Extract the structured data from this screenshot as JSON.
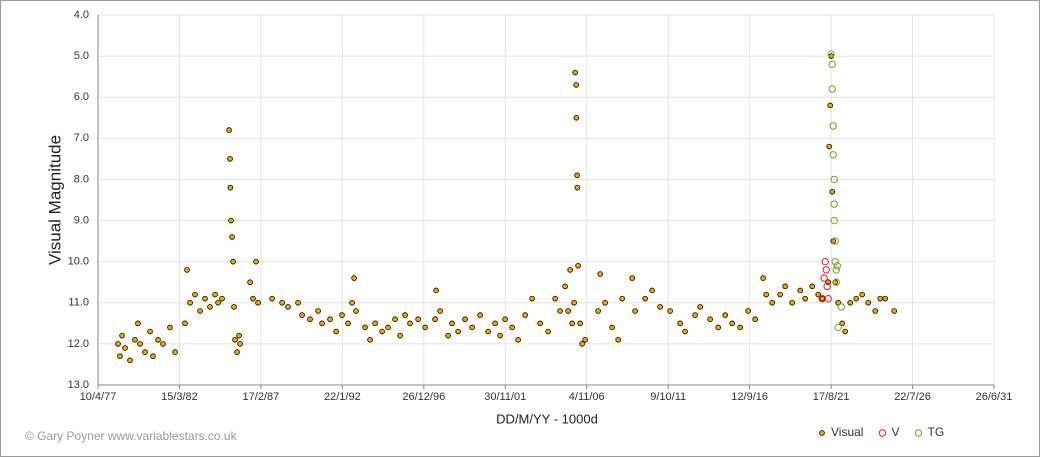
{
  "chart_data": {
    "type": "scatter",
    "x_label": "DD/M/YY - 1000d",
    "y_label": "Visual Magnitude",
    "credit": "© Gary Poyner www.variablestars.co.uk",
    "xlim": [
      28225,
      39225
    ],
    "xticks": [
      {
        "value": 28225,
        "label": "10/4/77"
      },
      {
        "value": 29225,
        "label": "15/3/82"
      },
      {
        "value": 30225,
        "label": "17/2/87"
      },
      {
        "value": 31225,
        "label": "22/1/92"
      },
      {
        "value": 32225,
        "label": "26/12/96"
      },
      {
        "value": 33225,
        "label": "30/11/01"
      },
      {
        "value": 34225,
        "label": "4/11/06"
      },
      {
        "value": 35225,
        "label": "9/10/11"
      },
      {
        "value": 36225,
        "label": "12/9/16"
      },
      {
        "value": 37225,
        "label": "17/8/21"
      },
      {
        "value": 38225,
        "label": "22/7/26"
      },
      {
        "value": 39225,
        "label": "26/6/31"
      }
    ],
    "ylim": [
      4,
      13
    ],
    "y_inverted": true,
    "yticks": [
      {
        "value": 4,
        "label": "4.0"
      },
      {
        "value": 5,
        "label": "5.0"
      },
      {
        "value": 6,
        "label": "6.0"
      },
      {
        "value": 7,
        "label": "7.0"
      },
      {
        "value": 8,
        "label": "8.0"
      },
      {
        "value": 9,
        "label": "9.0"
      },
      {
        "value": 10,
        "label": "10.0"
      },
      {
        "value": 11,
        "label": "11.0"
      },
      {
        "value": 12,
        "label": "12.0"
      },
      {
        "value": 13,
        "label": "13.0"
      }
    ],
    "grid": true,
    "legend": "bottom-right",
    "series": [
      {
        "name": "Visual",
        "color": "#f0a800",
        "filled": true,
        "x": [
          28471,
          28495,
          28520,
          28557,
          28618,
          28679,
          28716,
          28741,
          28802,
          28864,
          28900,
          28962,
          29023,
          29109,
          29171,
          29293,
          29318,
          29355,
          29416,
          29478,
          29539,
          29600,
          29662,
          29699,
          29748,
          29834,
          29846,
          29850,
          29858,
          29871,
          29883,
          29895,
          29907,
          29932,
          29956,
          29969,
          30092,
          30128,
          30165,
          30190,
          30362,
          30485,
          30558,
          30681,
          30730,
          30828,
          30927,
          30976,
          31074,
          31148,
          31221,
          31295,
          31344,
          31369,
          31393,
          31504,
          31565,
          31627,
          31713,
          31786,
          31872,
          31934,
          31995,
          32056,
          32155,
          32241,
          32363,
          32376,
          32425,
          32523,
          32572,
          32646,
          32732,
          32818,
          32916,
          33014,
          33100,
          33162,
          33223,
          33309,
          33383,
          33469,
          33555,
          33653,
          33751,
          33837,
          33898,
          33960,
          33997,
          34021,
          34046,
          34070,
          34083,
          34095,
          34098,
          34107,
          34110,
          34119,
          34144,
          34169,
          34205,
          34365,
          34390,
          34451,
          34537,
          34611,
          34660,
          34783,
          34819,
          34942,
          35028,
          35126,
          35249,
          35372,
          35433,
          35556,
          35618,
          35740,
          35839,
          35925,
          36011,
          36109,
          36207,
          36293,
          36391,
          36428,
          36502,
          36600,
          36661,
          36747,
          36846,
          36907,
          36993,
          37067,
          37116,
          37189,
          37202,
          37214,
          37226,
          37239,
          37251,
          37275,
          37312,
          37361,
          37398,
          37460,
          37533,
          37607,
          37681,
          37767,
          37828,
          37889,
          38000
        ],
        "values": [
          12.0,
          12.3,
          11.8,
          12.1,
          12.4,
          11.9,
          11.5,
          12.0,
          12.2,
          11.7,
          12.3,
          11.9,
          12.0,
          11.6,
          12.2,
          11.5,
          10.2,
          11.0,
          10.8,
          11.2,
          10.9,
          11.1,
          10.8,
          11.0,
          10.9,
          6.8,
          7.5,
          8.2,
          9.0,
          9.4,
          10.0,
          11.1,
          11.9,
          12.2,
          11.8,
          12.0,
          10.5,
          10.9,
          10.0,
          11.0,
          10.9,
          11.0,
          11.1,
          11.0,
          11.3,
          11.4,
          11.2,
          11.5,
          11.4,
          11.7,
          11.3,
          11.5,
          11.0,
          10.4,
          11.2,
          11.6,
          11.9,
          11.5,
          11.7,
          11.6,
          11.4,
          11.8,
          11.3,
          11.5,
          11.4,
          11.6,
          11.4,
          10.7,
          11.2,
          11.8,
          11.5,
          11.7,
          11.4,
          11.6,
          11.3,
          11.7,
          11.5,
          11.8,
          11.4,
          11.6,
          11.9,
          11.3,
          10.9,
          11.5,
          11.7,
          10.9,
          11.2,
          10.6,
          11.2,
          10.2,
          11.5,
          11.0,
          5.4,
          5.7,
          6.5,
          7.9,
          8.2,
          10.1,
          11.5,
          12.0,
          11.9,
          11.2,
          10.3,
          11.0,
          11.6,
          11.9,
          10.9,
          10.4,
          11.2,
          10.9,
          10.7,
          11.1,
          11.2,
          11.5,
          11.7,
          11.3,
          11.1,
          11.4,
          11.6,
          11.3,
          11.5,
          11.6,
          11.2,
          11.4,
          10.4,
          10.8,
          11.0,
          10.8,
          10.6,
          11.0,
          10.7,
          10.9,
          10.6,
          10.8,
          10.9,
          10.5,
          7.2,
          6.2,
          5.0,
          8.3,
          9.5,
          10.5,
          11.0,
          11.5,
          11.7,
          11.0,
          10.9,
          10.8,
          11.0,
          11.2,
          10.9,
          10.9,
          11.2
        ]
      },
      {
        "name": "V",
        "color": "#e02020",
        "filled": false,
        "x": [
          37116,
          37140,
          37153,
          37165,
          37177,
          37189
        ],
        "values": [
          10.9,
          10.4,
          10.0,
          10.2,
          10.6,
          10.9
        ]
      },
      {
        "name": "TG",
        "color": "#70a030",
        "filled": false,
        "x": [
          37226,
          37239,
          37239,
          37251,
          37251,
          37263,
          37263,
          37263,
          37275,
          37275,
          37288,
          37288,
          37301,
          37312,
          37349
        ],
        "values": [
          4.95,
          5.2,
          5.8,
          6.7,
          7.4,
          8.0,
          8.6,
          9.0,
          9.5,
          10.0,
          10.2,
          10.5,
          10.1,
          11.6,
          11.1
        ]
      }
    ]
  }
}
